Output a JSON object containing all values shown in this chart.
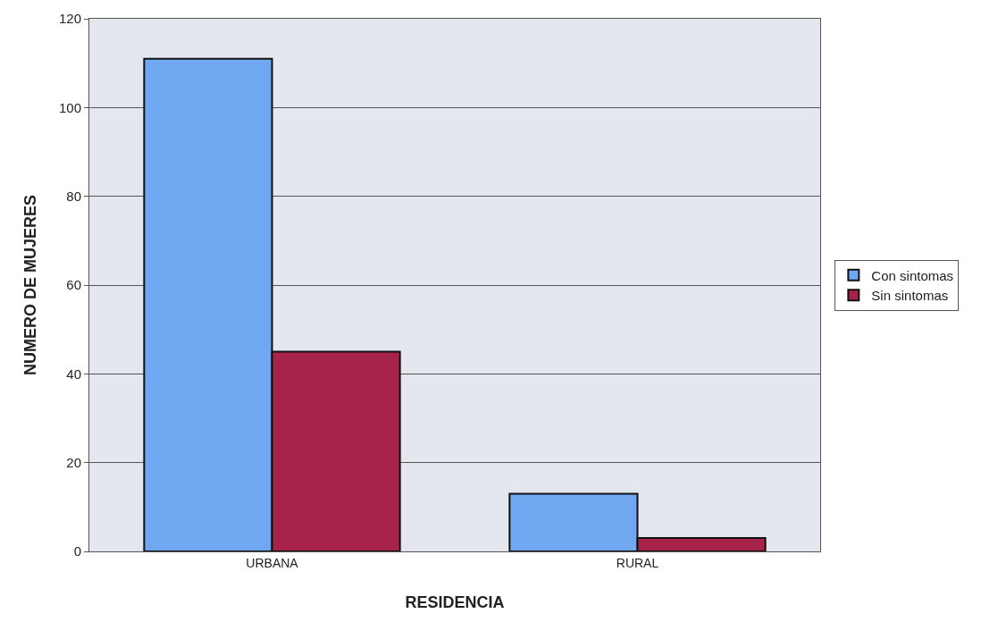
{
  "chart_data": {
    "type": "bar",
    "xlabel": "RESIDENCIA",
    "ylabel": "NUMERO DE MUJERES",
    "categories": [
      "URBANA",
      "RURAL"
    ],
    "series": [
      {
        "name": "Con sintomas",
        "color": "#6fa8f0",
        "values": [
          111,
          13
        ]
      },
      {
        "name": "Sin sintomas",
        "color": "#a8234a",
        "values": [
          45,
          3
        ]
      }
    ],
    "ylim": [
      0,
      120
    ],
    "yticks": [
      0,
      20,
      40,
      60,
      80,
      100,
      120
    ],
    "grid": "y",
    "legend": "right"
  }
}
